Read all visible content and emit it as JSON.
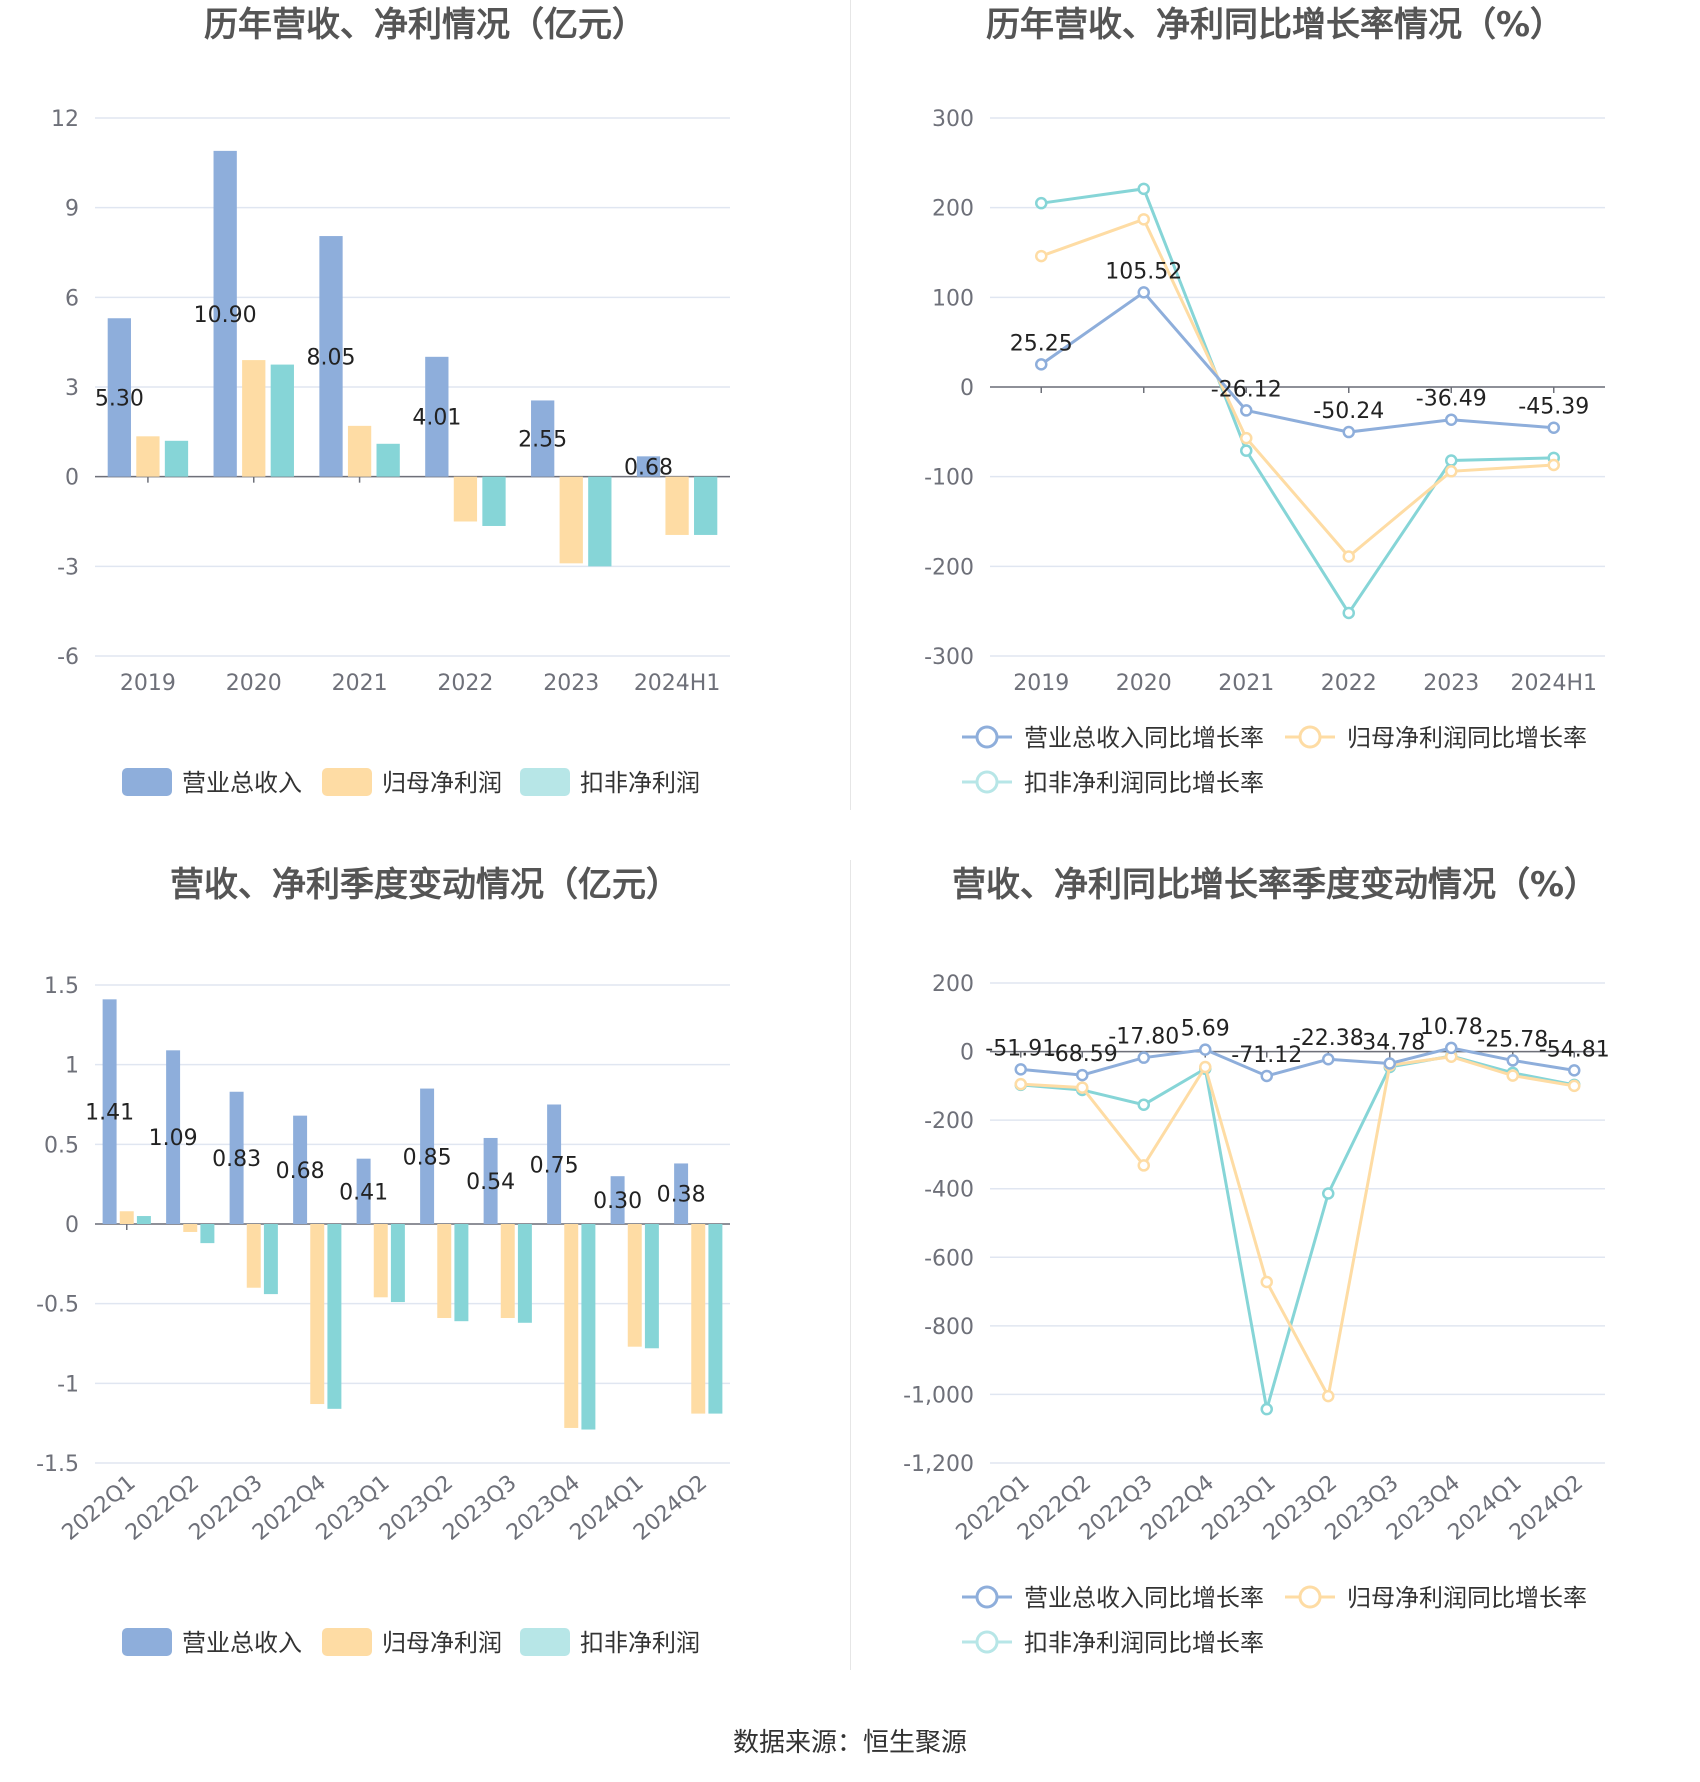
{
  "source": "数据来源：恒生聚源",
  "colors": {
    "revenue": "#8eaedb",
    "net_profit": "#fedca4",
    "deducted_profit": "#86d5d7",
    "grid": "#e0e6f1",
    "axis_text": "#6e7079",
    "title": "#555555"
  },
  "chart_data": [
    {
      "type": "bar",
      "title": "历年营收、净利情况（亿元）",
      "categories": [
        "2019",
        "2020",
        "2021",
        "2022",
        "2023",
        "2024H1"
      ],
      "yticks": [
        12,
        9,
        6,
        3,
        0,
        -3,
        -6
      ],
      "ylim": [
        -6,
        12
      ],
      "series": [
        {
          "name": "营业总收入",
          "values": [
            5.3,
            10.9,
            8.05,
            4.01,
            2.55,
            0.68
          ],
          "labels": [
            "5.30",
            "10.90",
            "8.05",
            "4.01",
            "2.55",
            "0.68"
          ]
        },
        {
          "name": "归母净利润",
          "values": [
            1.35,
            3.9,
            1.7,
            -1.5,
            -2.9,
            -1.95
          ]
        },
        {
          "name": "扣非净利润",
          "values": [
            1.2,
            3.75,
            1.1,
            -1.65,
            -3.0,
            -1.95
          ]
        }
      ],
      "legend": "bottom"
    },
    {
      "type": "line",
      "title": "历年营收、净利同比增长率情况（%）",
      "categories": [
        "2019",
        "2020",
        "2021",
        "2022",
        "2023",
        "2024H1"
      ],
      "yticks": [
        300,
        200,
        100,
        0,
        -100,
        -200,
        -300
      ],
      "ylim": [
        -300,
        300
      ],
      "series": [
        {
          "name": "营业总收入同比增长率",
          "values": [
            25.25,
            105.52,
            -26.12,
            -50.24,
            -36.49,
            -45.39
          ],
          "labels": [
            "25.25",
            "105.52",
            "-26.12",
            "-50.24",
            "-36.49",
            "-45.39"
          ]
        },
        {
          "name": "归母净利润同比增长率",
          "values": [
            146,
            187,
            -57,
            -189,
            -94,
            -87
          ]
        },
        {
          "name": "扣非净利润同比增长率",
          "values": [
            205,
            221,
            -71,
            -252,
            -82,
            -79
          ]
        }
      ],
      "legend": "bottom"
    },
    {
      "type": "bar",
      "title": "营收、净利季度变动情况（亿元）",
      "categories": [
        "2022Q1",
        "2022Q2",
        "2022Q3",
        "2022Q4",
        "2023Q1",
        "2023Q2",
        "2023Q3",
        "2023Q4",
        "2024Q1",
        "2024Q2"
      ],
      "yticks": [
        "1.5",
        "1",
        "0.5",
        "0",
        "-0.5",
        "-1",
        "-1.5"
      ],
      "ylim": [
        -1.5,
        1.5
      ],
      "series": [
        {
          "name": "营业总收入",
          "values": [
            1.41,
            1.09,
            0.83,
            0.68,
            0.41,
            0.85,
            0.54,
            0.75,
            0.3,
            0.38
          ],
          "labels": [
            "1.41",
            "1.09",
            "0.83",
            "0.68",
            "0.41",
            "0.85",
            "0.54",
            "0.75",
            "0.30",
            "0.38"
          ]
        },
        {
          "name": "归母净利润",
          "values": [
            0.08,
            -0.05,
            -0.4,
            -1.13,
            -0.46,
            -0.59,
            -0.59,
            -1.28,
            -0.77,
            -1.19
          ]
        },
        {
          "name": "扣非净利润",
          "values": [
            0.05,
            -0.12,
            -0.44,
            -1.16,
            -0.49,
            -0.61,
            -0.62,
            -1.29,
            -0.78,
            -1.19
          ]
        }
      ],
      "legend": "bottom"
    },
    {
      "type": "line",
      "title": "营收、净利同比增长率季度变动情况（%）",
      "categories": [
        "2022Q1",
        "2022Q2",
        "2022Q3",
        "2022Q4",
        "2023Q1",
        "2023Q2",
        "2023Q3",
        "2023Q4",
        "2024Q1",
        "2024Q2"
      ],
      "yticks": [
        "200",
        "0",
        "-200",
        "-400",
        "-600",
        "-800",
        "-1,000",
        "-1,200"
      ],
      "ylim": [
        -1200,
        200
      ],
      "series": [
        {
          "name": "营业总收入同比增长率",
          "values": [
            -51.91,
            -68.59,
            -17.8,
            5.69,
            -71.12,
            -22.38,
            -34.78,
            10.78,
            -25.78,
            -54.81
          ],
          "labels": [
            "-51.91",
            "-68.59",
            "-17.80",
            "5.69",
            "-71.12",
            "-22.38",
            "-34.78",
            "10.78",
            "-25.78",
            "-54.81"
          ]
        },
        {
          "name": "归母净利润同比增长率",
          "values": [
            -95,
            -105,
            -332,
            -45,
            -672,
            -1005,
            -40,
            -15,
            -70,
            -100
          ]
        },
        {
          "name": "扣非净利润同比增长率",
          "values": [
            -97,
            -112,
            -155,
            -50,
            -1043,
            -414,
            -45,
            -13,
            -62,
            -97
          ]
        }
      ],
      "legend": "bottom"
    }
  ]
}
